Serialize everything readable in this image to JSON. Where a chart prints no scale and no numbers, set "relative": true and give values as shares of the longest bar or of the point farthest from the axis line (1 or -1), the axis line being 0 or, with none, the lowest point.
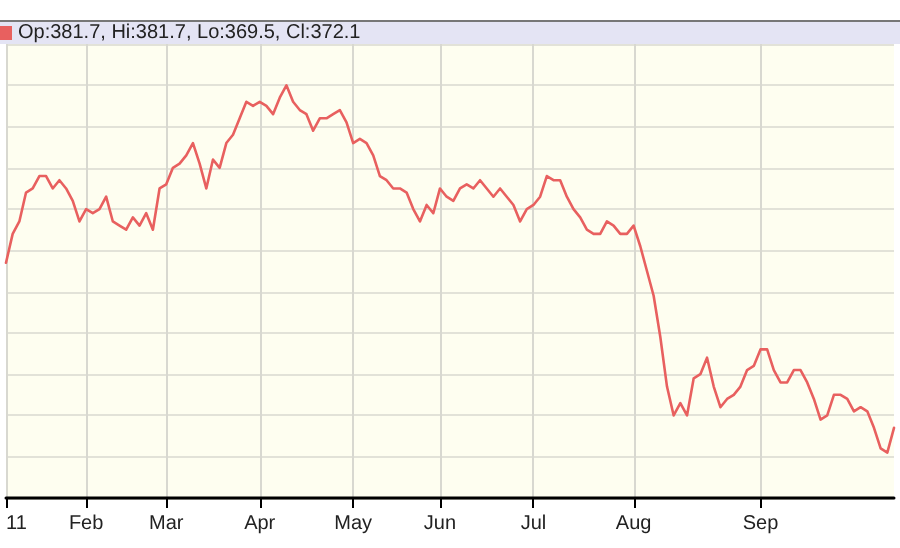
{
  "chart_data": {
    "type": "line",
    "subtitle": "Op:381.7, Hi:381.7, Lo:369.5, Cl:372.1",
    "relative": true,
    "grid": true,
    "marker": "none",
    "line_style": "solid",
    "categories": [
      "11",
      null,
      null,
      null,
      null,
      null,
      null,
      null,
      null,
      null,
      null,
      null,
      "Feb",
      null,
      null,
      null,
      null,
      null,
      null,
      null,
      null,
      null,
      null,
      null,
      "Mar",
      null,
      null,
      null,
      null,
      null,
      null,
      null,
      null,
      null,
      null,
      null,
      null,
      null,
      "Apr",
      null,
      null,
      null,
      null,
      null,
      null,
      null,
      null,
      null,
      null,
      null,
      null,
      null,
      "May",
      null,
      null,
      null,
      null,
      null,
      null,
      null,
      null,
      null,
      null,
      null,
      null,
      "Jun",
      null,
      null,
      null,
      null,
      null,
      null,
      null,
      null,
      null,
      null,
      null,
      null,
      null,
      "Jul",
      null,
      null,
      null,
      null,
      null,
      null,
      null,
      null,
      null,
      null,
      null,
      null,
      null,
      null,
      "Aug",
      null,
      null,
      null,
      null,
      null,
      null,
      null,
      null,
      null,
      null,
      null,
      null,
      null,
      null,
      null,
      null,
      null,
      null,
      "Sep",
      null,
      null,
      null,
      null,
      null,
      null,
      null,
      null,
      null,
      null,
      null,
      null,
      null,
      null,
      null,
      null,
      null,
      null,
      null,
      null
    ],
    "series": [
      {
        "color": "#e8605f",
        "values": [
          0.57,
          0.64,
          0.67,
          0.74,
          0.75,
          0.78,
          0.78,
          0.75,
          0.77,
          0.75,
          0.72,
          0.67,
          0.7,
          0.69,
          0.7,
          0.73,
          0.67,
          0.66,
          0.65,
          0.68,
          0.66,
          0.69,
          0.65,
          0.75,
          0.76,
          0.8,
          0.81,
          0.83,
          0.86,
          0.81,
          0.75,
          0.82,
          0.8,
          0.86,
          0.88,
          0.92,
          0.96,
          0.95,
          0.96,
          0.95,
          0.93,
          0.97,
          1,
          0.96,
          0.94,
          0.93,
          0.89,
          0.92,
          0.92,
          0.93,
          0.94,
          0.91,
          0.86,
          0.87,
          0.86,
          0.83,
          0.78,
          0.77,
          0.75,
          0.75,
          0.74,
          0.7,
          0.67,
          0.71,
          0.69,
          0.75,
          0.73,
          0.72,
          0.75,
          0.76,
          0.75,
          0.77,
          0.75,
          0.73,
          0.75,
          0.73,
          0.71,
          0.67,
          0.7,
          0.71,
          0.73,
          0.78,
          0.77,
          0.77,
          0.73,
          0.7,
          0.68,
          0.65,
          0.64,
          0.64,
          0.67,
          0.66,
          0.64,
          0.64,
          0.66,
          0.61,
          0.55,
          0.49,
          0.39,
          0.27,
          0.2,
          0.23,
          0.2,
          0.29,
          0.3,
          0.34,
          0.27,
          0.22,
          0.24,
          0.25,
          0.27,
          0.31,
          0.32,
          0.36,
          0.36,
          0.31,
          0.28,
          0.28,
          0.31,
          0.31,
          0.28,
          0.24,
          0.19,
          0.2,
          0.25,
          0.25,
          0.24,
          0.21,
          0.22,
          0.21,
          0.17,
          0.12,
          0.11,
          0.17
        ]
      }
    ]
  }
}
